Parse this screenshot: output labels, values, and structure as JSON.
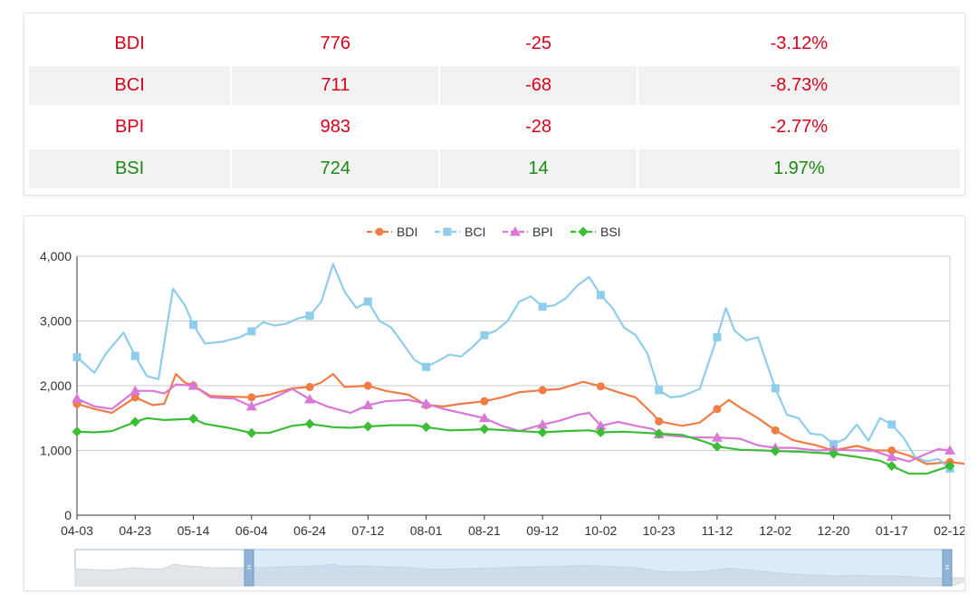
{
  "table": {
    "rows": [
      {
        "name": "BDI",
        "value": "776",
        "change": "-25",
        "pct": "-3.12%",
        "trend": "down"
      },
      {
        "name": "BCI",
        "value": "711",
        "change": "-68",
        "pct": "-8.73%",
        "trend": "down"
      },
      {
        "name": "BPI",
        "value": "983",
        "change": "-28",
        "pct": "-2.77%",
        "trend": "down"
      },
      {
        "name": "BSI",
        "value": "724",
        "change": "14",
        "pct": "1.97%",
        "trend": "up"
      }
    ]
  },
  "colors": {
    "BDI": "#f07c46",
    "BCI": "#8fcdec",
    "BPI": "#d978d8",
    "BSI": "#3bbd36",
    "up": "#1a8a12",
    "down": "#d9001b"
  },
  "chart_data": {
    "type": "line",
    "categories": [
      "04-03",
      "04-23",
      "05-14",
      "06-04",
      "06-24",
      "07-12",
      "08-01",
      "08-21",
      "09-12",
      "10-02",
      "10-23",
      "11-12",
      "12-02",
      "12-20",
      "01-17",
      "02-12"
    ],
    "y_tick_labels": [
      "0",
      "1,000",
      "2,000",
      "3,000",
      "4,000"
    ],
    "ylim": [
      0,
      4000
    ],
    "legend_position": "top-center",
    "series": [
      {
        "name": "BDI",
        "marker": "circle",
        "values": [
          [
            0,
            1720
          ],
          [
            0.3,
            1640
          ],
          [
            0.6,
            1580
          ],
          [
            1,
            1820
          ],
          [
            1.3,
            1700
          ],
          [
            1.5,
            1720
          ],
          [
            1.7,
            2180
          ],
          [
            1.85,
            2050
          ],
          [
            2,
            2000
          ],
          [
            2.3,
            1840
          ],
          [
            2.7,
            1830
          ],
          [
            3,
            1820
          ],
          [
            3.3,
            1860
          ],
          [
            3.7,
            1960
          ],
          [
            4,
            1980
          ],
          [
            4.2,
            2050
          ],
          [
            4.4,
            2180
          ],
          [
            4.6,
            1980
          ],
          [
            5,
            2000
          ],
          [
            5.3,
            1920
          ],
          [
            5.7,
            1860
          ],
          [
            6,
            1700
          ],
          [
            6.3,
            1680
          ],
          [
            6.6,
            1720
          ],
          [
            7,
            1760
          ],
          [
            7.3,
            1820
          ],
          [
            7.6,
            1900
          ],
          [
            8,
            1930
          ],
          [
            8.3,
            1950
          ],
          [
            8.7,
            2060
          ],
          [
            9,
            1990
          ],
          [
            9.3,
            1900
          ],
          [
            9.6,
            1820
          ],
          [
            9.9,
            1560
          ],
          [
            10,
            1450
          ],
          [
            10.4,
            1380
          ],
          [
            10.7,
            1430
          ],
          [
            11,
            1640
          ],
          [
            11.2,
            1780
          ],
          [
            11.4,
            1660
          ],
          [
            11.7,
            1500
          ],
          [
            12,
            1310
          ],
          [
            12.3,
            1160
          ],
          [
            12.7,
            1080
          ],
          [
            13,
            1000
          ],
          [
            13.4,
            1070
          ],
          [
            13.7,
            1000
          ],
          [
            14,
            1000
          ],
          [
            14.3,
            920
          ],
          [
            14.6,
            790
          ],
          [
            15,
            820
          ],
          [
            15.4,
            780
          ]
        ]
      },
      {
        "name": "BCI",
        "marker": "square",
        "values": [
          [
            0,
            2440
          ],
          [
            0.3,
            2200
          ],
          [
            0.5,
            2500
          ],
          [
            0.8,
            2820
          ],
          [
            1,
            2460
          ],
          [
            1.2,
            2150
          ],
          [
            1.4,
            2100
          ],
          [
            1.65,
            3500
          ],
          [
            1.85,
            3250
          ],
          [
            2,
            2940
          ],
          [
            2.2,
            2650
          ],
          [
            2.5,
            2680
          ],
          [
            2.8,
            2750
          ],
          [
            3,
            2840
          ],
          [
            3.2,
            2980
          ],
          [
            3.4,
            2930
          ],
          [
            3.6,
            2960
          ],
          [
            3.8,
            3040
          ],
          [
            4,
            3080
          ],
          [
            4.2,
            3300
          ],
          [
            4.4,
            3880
          ],
          [
            4.6,
            3450
          ],
          [
            4.8,
            3200
          ],
          [
            5,
            3300
          ],
          [
            5.2,
            3000
          ],
          [
            5.4,
            2900
          ],
          [
            5.6,
            2650
          ],
          [
            5.8,
            2400
          ],
          [
            6,
            2290
          ],
          [
            6.2,
            2380
          ],
          [
            6.4,
            2480
          ],
          [
            6.6,
            2450
          ],
          [
            6.8,
            2600
          ],
          [
            7,
            2780
          ],
          [
            7.2,
            2850
          ],
          [
            7.4,
            3000
          ],
          [
            7.6,
            3300
          ],
          [
            7.8,
            3380
          ],
          [
            8,
            3220
          ],
          [
            8.2,
            3240
          ],
          [
            8.4,
            3350
          ],
          [
            8.6,
            3550
          ],
          [
            8.8,
            3680
          ],
          [
            9,
            3400
          ],
          [
            9.2,
            3200
          ],
          [
            9.4,
            2900
          ],
          [
            9.6,
            2780
          ],
          [
            9.8,
            2500
          ],
          [
            10,
            1930
          ],
          [
            10.2,
            1820
          ],
          [
            10.4,
            1840
          ],
          [
            10.7,
            1950
          ],
          [
            11,
            2750
          ],
          [
            11.15,
            3200
          ],
          [
            11.3,
            2850
          ],
          [
            11.5,
            2700
          ],
          [
            11.7,
            2750
          ],
          [
            12,
            1960
          ],
          [
            12.2,
            1550
          ],
          [
            12.4,
            1500
          ],
          [
            12.6,
            1260
          ],
          [
            12.8,
            1240
          ],
          [
            13,
            1100
          ],
          [
            13.2,
            1180
          ],
          [
            13.4,
            1400
          ],
          [
            13.6,
            1150
          ],
          [
            13.8,
            1500
          ],
          [
            14,
            1400
          ],
          [
            14.2,
            1200
          ],
          [
            14.4,
            900
          ],
          [
            14.6,
            830
          ],
          [
            14.8,
            870
          ],
          [
            15,
            720
          ]
        ]
      },
      {
        "name": "BPI",
        "marker": "triangle",
        "values": [
          [
            0,
            1800
          ],
          [
            0.3,
            1680
          ],
          [
            0.6,
            1640
          ],
          [
            1,
            1920
          ],
          [
            1.3,
            1920
          ],
          [
            1.5,
            1880
          ],
          [
            1.7,
            2020
          ],
          [
            2,
            2000
          ],
          [
            2.3,
            1820
          ],
          [
            2.7,
            1800
          ],
          [
            3,
            1680
          ],
          [
            3.3,
            1780
          ],
          [
            3.7,
            1950
          ],
          [
            4,
            1790
          ],
          [
            4.3,
            1680
          ],
          [
            4.7,
            1580
          ],
          [
            5,
            1700
          ],
          [
            5.3,
            1760
          ],
          [
            5.7,
            1780
          ],
          [
            6,
            1720
          ],
          [
            6.3,
            1640
          ],
          [
            6.7,
            1560
          ],
          [
            7,
            1500
          ],
          [
            7.3,
            1380
          ],
          [
            7.6,
            1300
          ],
          [
            8,
            1400
          ],
          [
            8.3,
            1460
          ],
          [
            8.6,
            1550
          ],
          [
            8.8,
            1580
          ],
          [
            9,
            1380
          ],
          [
            9.3,
            1440
          ],
          [
            9.6,
            1380
          ],
          [
            9.9,
            1330
          ],
          [
            10,
            1250
          ],
          [
            10.3,
            1220
          ],
          [
            10.6,
            1200
          ],
          [
            11,
            1200
          ],
          [
            11.4,
            1180
          ],
          [
            11.7,
            1080
          ],
          [
            12,
            1040
          ],
          [
            12.3,
            1040
          ],
          [
            12.7,
            1000
          ],
          [
            13,
            1010
          ],
          [
            13.4,
            1000
          ],
          [
            13.7,
            990
          ],
          [
            14,
            900
          ],
          [
            14.3,
            830
          ],
          [
            14.6,
            950
          ],
          [
            14.8,
            1020
          ],
          [
            15,
            1000
          ]
        ]
      },
      {
        "name": "BSI",
        "marker": "diamond",
        "values": [
          [
            0,
            1290
          ],
          [
            0.3,
            1280
          ],
          [
            0.6,
            1300
          ],
          [
            1,
            1440
          ],
          [
            1.2,
            1500
          ],
          [
            1.5,
            1470
          ],
          [
            2,
            1490
          ],
          [
            2.2,
            1410
          ],
          [
            2.6,
            1350
          ],
          [
            3,
            1270
          ],
          [
            3.3,
            1270
          ],
          [
            3.7,
            1380
          ],
          [
            4,
            1410
          ],
          [
            4.4,
            1360
          ],
          [
            4.7,
            1350
          ],
          [
            5,
            1370
          ],
          [
            5.4,
            1390
          ],
          [
            5.8,
            1390
          ],
          [
            6,
            1360
          ],
          [
            6.4,
            1310
          ],
          [
            6.8,
            1320
          ],
          [
            7,
            1330
          ],
          [
            7.4,
            1310
          ],
          [
            7.8,
            1290
          ],
          [
            8,
            1280
          ],
          [
            8.4,
            1300
          ],
          [
            8.8,
            1310
          ],
          [
            9,
            1280
          ],
          [
            9.4,
            1290
          ],
          [
            9.8,
            1270
          ],
          [
            10,
            1260
          ],
          [
            10.4,
            1240
          ],
          [
            10.8,
            1130
          ],
          [
            11,
            1060
          ],
          [
            11.4,
            1010
          ],
          [
            11.8,
            1000
          ],
          [
            12,
            990
          ],
          [
            12.4,
            980
          ],
          [
            12.8,
            960
          ],
          [
            13,
            950
          ],
          [
            13.4,
            900
          ],
          [
            13.8,
            840
          ],
          [
            14,
            760
          ],
          [
            14.3,
            640
          ],
          [
            14.6,
            640
          ],
          [
            15,
            760
          ]
        ]
      }
    ]
  }
}
